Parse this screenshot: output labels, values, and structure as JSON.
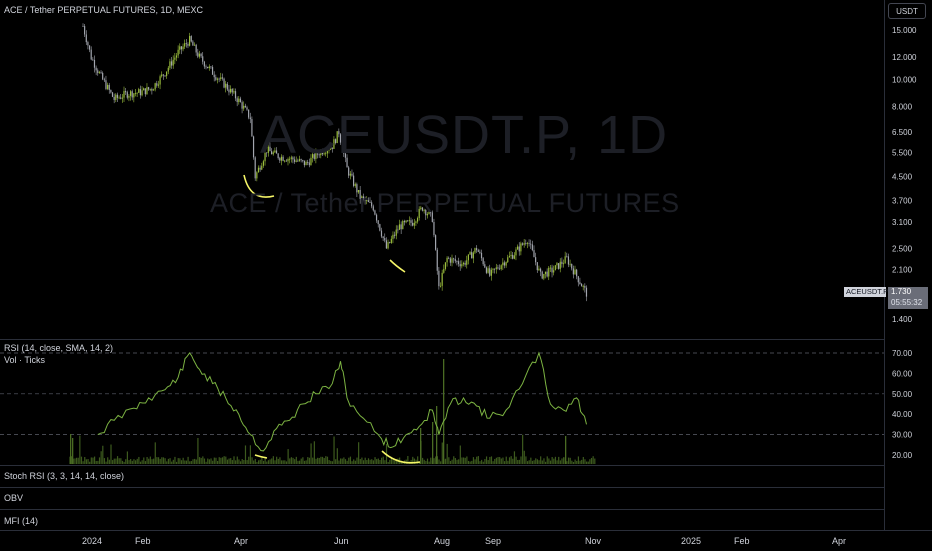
{
  "header": {
    "symbol_line": "ACE / Tether PERPETUAL FUTURES, 1D, MEXC",
    "currency": "USDT"
  },
  "watermark": {
    "ticker": "ACEUSDT.P, 1D",
    "name": "ACE / Tether PERPETUAL FUTURES"
  },
  "price_scale": {
    "ticks": [
      "15.000",
      "12.000",
      "10.000",
      "8.000",
      "6.500",
      "5.500",
      "4.500",
      "3.700",
      "3.100",
      "2.500",
      "2.100",
      "1.400"
    ],
    "ticker_tag": "ACEUSDT.P",
    "last_price": "1.730",
    "countdown": "05:55:32"
  },
  "indicators": {
    "rsi_label": "RSI (14, close, SMA, 14, 2)",
    "vol_label": "Vol · Ticks",
    "rsi_ticks": [
      "70.00",
      "60.00",
      "50.00",
      "40.00",
      "30.00",
      "20.00"
    ],
    "stoch_label": "Stoch RSI (3, 3, 14, 14, close)",
    "obv_label": "OBV",
    "mfi_label": "MFI (14)"
  },
  "time_axis": [
    "2024",
    "Feb",
    "Apr",
    "Jun",
    "Aug",
    "Sep",
    "Nov",
    "2025",
    "Feb",
    "Apr"
  ],
  "colors": {
    "up": "#9bbe3c",
    "down": "#a3a6af",
    "rsi": "#7cb342",
    "annotation": "#f5f567",
    "grid": "#2a2e39"
  },
  "chart_data": [
    {
      "type": "line",
      "title": "ACE / Tether PERPETUAL FUTURES, 1D, MEXC",
      "series": [
        {
          "name": "ACEUSDT.P",
          "x": [
            "2024-01-01",
            "2024-01-06",
            "2024-01-12",
            "2024-01-20",
            "2024-01-28",
            "2024-02-05",
            "2024-02-12",
            "2024-02-20",
            "2024-02-28",
            "2024-03-06",
            "2024-03-12",
            "2024-03-20",
            "2024-03-28",
            "2024-04-05",
            "2024-04-12",
            "2024-04-15",
            "2024-04-22",
            "2024-04-30",
            "2024-05-08",
            "2024-05-16",
            "2024-05-24",
            "2024-06-01",
            "2024-06-05",
            "2024-06-10",
            "2024-06-18",
            "2024-06-26",
            "2024-07-04",
            "2024-07-12",
            "2024-07-20",
            "2024-07-26",
            "2024-08-01",
            "2024-08-05",
            "2024-08-10",
            "2024-08-20",
            "2024-08-28",
            "2024-09-05",
            "2024-09-12",
            "2024-09-20",
            "2024-09-28",
            "2024-10-06",
            "2024-10-14",
            "2024-10-22",
            "2024-10-30",
            "2024-11-03"
          ],
          "values": [
            15.5,
            12.0,
            10.2,
            8.5,
            8.9,
            9.0,
            9.3,
            10.6,
            12.5,
            13.8,
            12.0,
            10.6,
            9.5,
            8.4,
            7.3,
            4.5,
            5.6,
            5.3,
            5.2,
            5.0,
            5.5,
            5.8,
            6.5,
            4.8,
            3.8,
            3.5,
            2.5,
            3.0,
            3.1,
            3.5,
            3.2,
            1.8,
            2.3,
            2.2,
            2.5,
            2.0,
            2.2,
            2.4,
            2.7,
            2.0,
            2.1,
            2.3,
            1.9,
            1.73
          ]
        }
      ],
      "ylim": [
        1.4,
        16
      ]
    },
    {
      "type": "line",
      "title": "RSI (14, close, SMA, 14, 2)",
      "series": [
        {
          "x": [
            "2024-01-10",
            "2024-01-20",
            "2024-02-01",
            "2024-02-10",
            "2024-02-20",
            "2024-02-28",
            "2024-03-06",
            "2024-03-12",
            "2024-03-20",
            "2024-03-28",
            "2024-04-05",
            "2024-04-12",
            "2024-04-20",
            "2024-04-28",
            "2024-05-06",
            "2024-05-14",
            "2024-05-22",
            "2024-06-01",
            "2024-06-06",
            "2024-06-10",
            "2024-06-20",
            "2024-07-01",
            "2024-07-08",
            "2024-07-16",
            "2024-07-24",
            "2024-08-01",
            "2024-08-05",
            "2024-08-12",
            "2024-08-20",
            "2024-08-28",
            "2024-09-05",
            "2024-09-15",
            "2024-09-25",
            "2024-10-05",
            "2024-10-12",
            "2024-10-20",
            "2024-10-28",
            "2024-11-03"
          ],
          "values": [
            30,
            37,
            43,
            48,
            52,
            58,
            70,
            62,
            55,
            48,
            40,
            30,
            22,
            33,
            37,
            45,
            50,
            55,
            66,
            48,
            38,
            28,
            24,
            30,
            34,
            42,
            30,
            45,
            48,
            44,
            38,
            42,
            55,
            70,
            45,
            42,
            48,
            35
          ]
        }
      ],
      "ylim": [
        18,
        73
      ]
    },
    {
      "type": "bar",
      "title": "Vol · Ticks"
    }
  ]
}
